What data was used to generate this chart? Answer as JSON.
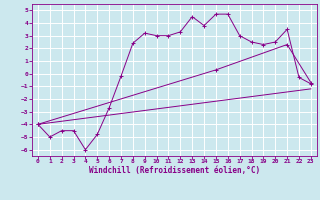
{
  "xlabel": "Windchill (Refroidissement éolien,°C)",
  "bg_color": "#cce8ee",
  "grid_color": "#ffffff",
  "line_color": "#880088",
  "xlim": [
    -0.5,
    23.5
  ],
  "ylim": [
    -6.5,
    5.5
  ],
  "xticks": [
    0,
    1,
    2,
    3,
    4,
    5,
    6,
    7,
    8,
    9,
    10,
    11,
    12,
    13,
    14,
    15,
    16,
    17,
    18,
    19,
    20,
    21,
    22,
    23
  ],
  "yticks": [
    -6,
    -5,
    -4,
    -3,
    -2,
    -1,
    0,
    1,
    2,
    3,
    4,
    5
  ],
  "line1_x": [
    0,
    1,
    2,
    3,
    4,
    5,
    6,
    7,
    8,
    9,
    10,
    11,
    12,
    13,
    14,
    15,
    16,
    17,
    18,
    19,
    20,
    21,
    22,
    23
  ],
  "line1_y": [
    -4,
    -5,
    -4.5,
    -4.5,
    -6.0,
    -4.8,
    -2.7,
    -0.2,
    2.4,
    3.2,
    3.0,
    3.0,
    3.3,
    4.5,
    3.8,
    4.7,
    4.7,
    3.0,
    2.5,
    2.3,
    2.5,
    3.5,
    -0.3,
    -0.8
  ],
  "line2_x": [
    0,
    15,
    21,
    23
  ],
  "line2_y": [
    -4,
    0.3,
    2.3,
    -0.7
  ],
  "line3_x": [
    0,
    23
  ],
  "line3_y": [
    -4,
    -1.2
  ],
  "marker": "+"
}
